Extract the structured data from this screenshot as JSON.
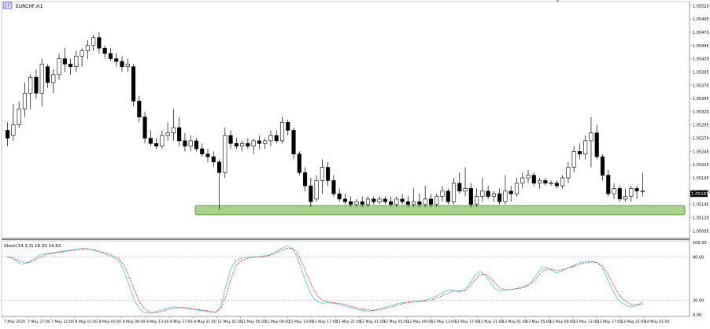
{
  "window": {
    "symbol_label": "EURCHF,H1"
  },
  "indicator": {
    "label": "Stoch(14,3,3) 18.30 14.63",
    "levels": [
      "100.00",
      "80.00",
      "20.00",
      "0.00"
    ]
  },
  "price_scale": [
    "1.05520",
    "1.05495",
    "1.05470",
    "1.05445",
    "1.05420",
    "1.05395",
    "1.05370",
    "1.05345",
    "1.05320",
    "1.05295",
    "1.05270",
    "1.05245",
    "1.05220",
    "1.05195",
    "1.05170",
    "1.05145",
    "1.05120",
    "1.05095"
  ],
  "current_price": "1.05165",
  "time_labels": [
    "7 May 2020",
    "7 May 17:00",
    "7 May 21:00",
    "8 May 01:00",
    "8 May 05:00",
    "8 May 09:00",
    "8 May 13:00",
    "8 May 17:00",
    "8 May 21:00",
    "11 May 01:00",
    "11 May 05:00",
    "11 May 09:00",
    "11 May 13:00",
    "11 May 17:00",
    "11 May 21:00",
    "12 May 01:00",
    "12 May 05:00",
    "12 May 09:00",
    "12 May 13:00",
    "12 May 17:00",
    "12 May 21:00",
    "13 May 01:00",
    "13 May 05:00",
    "13 May 09:00",
    "13 May 13:00",
    "13 May 17:00",
    "13 May 21:00",
    "14 May 01:00"
  ],
  "colors": {
    "support_zone": "#a9d18e",
    "support_zone_border": "#70ad47",
    "stoch_main": "#5bc8d8",
    "stoch_signal": "#e03030",
    "candle": "#000000"
  },
  "chart_data": [
    {
      "type": "candlestick",
      "symbol": "EURCHF",
      "timeframe": "H1",
      "ylim": [
        1.05085,
        1.05525
      ],
      "support_zone": [
        1.0513,
        1.05138
      ],
      "candles": [
        [
          1.05285,
          1.053,
          1.05255,
          1.0527
        ],
        [
          1.05275,
          1.05335,
          1.05265,
          1.05295
        ],
        [
          1.05295,
          1.0534,
          1.0529,
          1.05325
        ],
        [
          1.05325,
          1.05375,
          1.0531,
          1.05355
        ],
        [
          1.05355,
          1.0539,
          1.05325,
          1.05385
        ],
        [
          1.05385,
          1.054,
          1.05345,
          1.05355
        ],
        [
          1.05355,
          1.0542,
          1.0533,
          1.0541
        ],
        [
          1.05405,
          1.0541,
          1.05365,
          1.05375
        ],
        [
          1.05375,
          1.054,
          1.05355,
          1.0539
        ],
        [
          1.0539,
          1.0543,
          1.0538,
          1.0542
        ],
        [
          1.0542,
          1.0544,
          1.05395,
          1.0541
        ],
        [
          1.0541,
          1.0542,
          1.0539,
          1.05405
        ],
        [
          1.05405,
          1.05435,
          1.05395,
          1.05425
        ],
        [
          1.05425,
          1.0544,
          1.05405,
          1.05435
        ],
        [
          1.05435,
          1.05455,
          1.0542,
          1.05445
        ],
        [
          1.05445,
          1.05465,
          1.05435,
          1.0546
        ],
        [
          1.0546,
          1.0547,
          1.0543,
          1.0544
        ],
        [
          1.0544,
          1.05445,
          1.0542,
          1.0543
        ],
        [
          1.0543,
          1.0544,
          1.05415,
          1.0542
        ],
        [
          1.0542,
          1.0543,
          1.05405,
          1.05415
        ],
        [
          1.05415,
          1.05425,
          1.05395,
          1.05405
        ],
        [
          1.05405,
          1.0542,
          1.05395,
          1.0541
        ],
        [
          1.05405,
          1.0541,
          1.0533,
          1.0534
        ],
        [
          1.0534,
          1.0535,
          1.053,
          1.0531
        ],
        [
          1.0531,
          1.0532,
          1.0526,
          1.0527
        ],
        [
          1.0527,
          1.05285,
          1.05255,
          1.0526
        ],
        [
          1.0526,
          1.0527,
          1.0525,
          1.05255
        ],
        [
          1.05255,
          1.05285,
          1.0525,
          1.05275
        ],
        [
          1.05275,
          1.053,
          1.05265,
          1.0528
        ],
        [
          1.0528,
          1.05325,
          1.05265,
          1.0529
        ],
        [
          1.0529,
          1.0531,
          1.05255,
          1.05265
        ],
        [
          1.05265,
          1.0528,
          1.05245,
          1.05255
        ],
        [
          1.05255,
          1.05275,
          1.05245,
          1.05265
        ],
        [
          1.05265,
          1.0527,
          1.05245,
          1.0525
        ],
        [
          1.0525,
          1.0526,
          1.05235,
          1.0524
        ],
        [
          1.0524,
          1.0525,
          1.05225,
          1.05235
        ],
        [
          1.05235,
          1.05245,
          1.05215,
          1.05225
        ],
        [
          1.05225,
          1.0523,
          1.05135,
          1.05205
        ],
        [
          1.05205,
          1.0529,
          1.05195,
          1.05275
        ],
        [
          1.05275,
          1.05285,
          1.0525,
          1.0526
        ],
        [
          1.0526,
          1.0527,
          1.0525,
          1.05255
        ],
        [
          1.05255,
          1.05265,
          1.05245,
          1.0526
        ],
        [
          1.0526,
          1.0527,
          1.0525,
          1.05255
        ],
        [
          1.05255,
          1.0527,
          1.0524,
          1.05265
        ],
        [
          1.05265,
          1.05275,
          1.0525,
          1.0526
        ],
        [
          1.0526,
          1.0527,
          1.0525,
          1.05265
        ],
        [
          1.05265,
          1.05285,
          1.05255,
          1.05275
        ],
        [
          1.05275,
          1.05285,
          1.0526,
          1.05265
        ],
        [
          1.05265,
          1.0531,
          1.0526,
          1.053
        ],
        [
          1.053,
          1.05305,
          1.05275,
          1.05285
        ],
        [
          1.05285,
          1.0529,
          1.0523,
          1.0524
        ],
        [
          1.0524,
          1.05245,
          1.052,
          1.05205
        ],
        [
          1.05205,
          1.05215,
          1.0517,
          1.0518
        ],
        [
          1.0518,
          1.05195,
          1.0514,
          1.0515
        ],
        [
          1.05155,
          1.052,
          1.0515,
          1.0519
        ],
        [
          1.0519,
          1.0523,
          1.05165,
          1.05215
        ],
        [
          1.05215,
          1.05225,
          1.0518,
          1.0519
        ],
        [
          1.0519,
          1.052,
          1.0516,
          1.05165
        ],
        [
          1.05165,
          1.05175,
          1.0515,
          1.05155
        ],
        [
          1.05155,
          1.05165,
          1.05145,
          1.0515
        ],
        [
          1.0515,
          1.0516,
          1.0514,
          1.05145
        ],
        [
          1.05145,
          1.05155,
          1.0514,
          1.0515
        ],
        [
          1.0515,
          1.0516,
          1.0514,
          1.05145
        ],
        [
          1.05145,
          1.0516,
          1.0514,
          1.05155
        ],
        [
          1.05155,
          1.0516,
          1.05145,
          1.0515
        ],
        [
          1.0515,
          1.0516,
          1.05145,
          1.05155
        ],
        [
          1.05155,
          1.0516,
          1.05145,
          1.0515
        ],
        [
          1.0515,
          1.0516,
          1.0514,
          1.05145
        ],
        [
          1.05145,
          1.0516,
          1.0514,
          1.05155
        ],
        [
          1.05155,
          1.05165,
          1.05145,
          1.0515
        ],
        [
          1.0515,
          1.0516,
          1.0514,
          1.05145
        ],
        [
          1.05145,
          1.05175,
          1.0514,
          1.0515
        ],
        [
          1.0515,
          1.05165,
          1.0514,
          1.05145
        ],
        [
          1.05145,
          1.0518,
          1.0514,
          1.05155
        ],
        [
          1.05155,
          1.05165,
          1.0514,
          1.05145
        ],
        [
          1.05145,
          1.05165,
          1.0514,
          1.0516
        ],
        [
          1.0516,
          1.0518,
          1.0515,
          1.0517
        ],
        [
          1.0517,
          1.05175,
          1.05145,
          1.0515
        ],
        [
          1.0515,
          1.05195,
          1.05145,
          1.05185
        ],
        [
          1.05185,
          1.05205,
          1.05165,
          1.0517
        ],
        [
          1.0517,
          1.05215,
          1.0516,
          1.05175
        ],
        [
          1.05175,
          1.05185,
          1.0514,
          1.05145
        ],
        [
          1.05145,
          1.05175,
          1.0514,
          1.0516
        ],
        [
          1.0516,
          1.05195,
          1.0515,
          1.0517
        ],
        [
          1.0517,
          1.0518,
          1.05155,
          1.0516
        ],
        [
          1.0516,
          1.0517,
          1.0515,
          1.05165
        ],
        [
          1.05165,
          1.05175,
          1.05145,
          1.0515
        ],
        [
          1.0515,
          1.052,
          1.05145,
          1.0517
        ],
        [
          1.0517,
          1.0518,
          1.0515,
          1.05165
        ],
        [
          1.05165,
          1.05195,
          1.0516,
          1.05185
        ],
        [
          1.05185,
          1.05205,
          1.05175,
          1.05195
        ],
        [
          1.05195,
          1.0521,
          1.05185,
          1.052
        ],
        [
          1.052,
          1.05205,
          1.0518,
          1.05185
        ],
        [
          1.05185,
          1.05195,
          1.05175,
          1.0519
        ],
        [
          1.0519,
          1.05195,
          1.0518,
          1.05185
        ],
        [
          1.05185,
          1.0519,
          1.0518,
          1.05185
        ],
        [
          1.05185,
          1.0519,
          1.05175,
          1.0518
        ],
        [
          1.0518,
          1.052,
          1.05175,
          1.05195
        ],
        [
          1.05195,
          1.05225,
          1.05185,
          1.05215
        ],
        [
          1.05215,
          1.05255,
          1.05205,
          1.05245
        ],
        [
          1.05245,
          1.0526,
          1.0523,
          1.0524
        ],
        [
          1.0524,
          1.05275,
          1.0523,
          1.05265
        ],
        [
          1.05265,
          1.0531,
          1.05215,
          1.0528
        ],
        [
          1.0528,
          1.05295,
          1.0523,
          1.05235
        ],
        [
          1.05235,
          1.0524,
          1.0519,
          1.052
        ],
        [
          1.052,
          1.0521,
          1.0516,
          1.05165
        ],
        [
          1.05165,
          1.05185,
          1.05155,
          1.05175
        ],
        [
          1.05175,
          1.0518,
          1.0515,
          1.05155
        ],
        [
          1.05155,
          1.05175,
          1.0515,
          1.0516
        ],
        [
          1.0516,
          1.0518,
          1.0515,
          1.05175
        ],
        [
          1.05175,
          1.0518,
          1.05155,
          1.0517
        ],
        [
          1.0517,
          1.05205,
          1.0516,
          1.0517
        ]
      ]
    },
    {
      "type": "line",
      "title": "Stoch(14,3,3) 18.30 14.63",
      "ylim": [
        0,
        100
      ],
      "levels": [
        80,
        20
      ],
      "series": [
        {
          "values": [
            80,
            78,
            73,
            70,
            72,
            76,
            81,
            84,
            85,
            86,
            87,
            88,
            89,
            90,
            91,
            92,
            91,
            89,
            87,
            85,
            82,
            79,
            74,
            60,
            40,
            20,
            8,
            3,
            2,
            4,
            6,
            8,
            10,
            11,
            10,
            9,
            8,
            7,
            6,
            5,
            4,
            3,
            12,
            40,
            65,
            75,
            78,
            79,
            80,
            80,
            81,
            82,
            84,
            88,
            92,
            95,
            92,
            80,
            60,
            40,
            25,
            18,
            16,
            17,
            16,
            15,
            13,
            11,
            9,
            7,
            6,
            5,
            6,
            8,
            10,
            12,
            14,
            16,
            17,
            18,
            18,
            19,
            20,
            22,
            25,
            28,
            32,
            35,
            33,
            32,
            35,
            44,
            55,
            60,
            55,
            45,
            36,
            33,
            34,
            35,
            36,
            38,
            40,
            45,
            55,
            64,
            66,
            62,
            58,
            60,
            64,
            67,
            70,
            73,
            74,
            74,
            72,
            65,
            50,
            35,
            22,
            16,
            12,
            11,
            14,
            18
          ]
        },
        {
          "values": [
            80,
            79,
            76,
            73,
            72,
            74,
            78,
            81,
            84,
            85,
            86,
            87,
            88,
            89,
            90,
            91,
            91,
            90,
            88,
            86,
            84,
            81,
            77,
            68,
            52,
            34,
            18,
            8,
            4,
            3,
            4,
            6,
            8,
            9,
            10,
            10,
            9,
            8,
            7,
            6,
            5,
            4,
            8,
            26,
            50,
            68,
            75,
            77,
            79,
            80,
            80,
            81,
            83,
            86,
            89,
            92,
            92,
            86,
            72,
            54,
            38,
            26,
            20,
            18,
            17,
            16,
            15,
            13,
            11,
            9,
            8,
            7,
            6,
            7,
            8,
            10,
            12,
            14,
            16,
            17,
            18,
            18,
            19,
            20,
            22,
            25,
            28,
            31,
            33,
            33,
            33,
            39,
            49,
            56,
            56,
            51,
            43,
            37,
            35,
            35,
            36,
            37,
            39,
            43,
            50,
            59,
            63,
            63,
            61,
            62,
            64,
            66,
            68,
            71,
            72,
            73,
            72,
            68,
            58,
            44,
            31,
            22,
            17,
            14,
            14,
            15
          ]
        }
      ]
    }
  ]
}
